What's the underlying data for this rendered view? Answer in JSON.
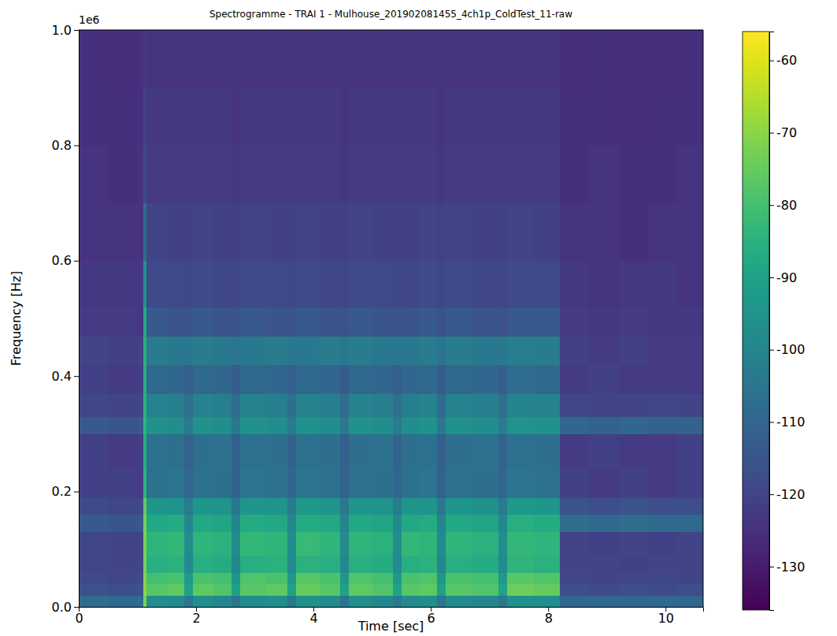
{
  "chart_data": {
    "type": "heatmap",
    "title": "Spectrogramme - TRAI 1 - Mulhouse_201902081455_4ch1p_ColdTest_11-raw",
    "x_label": "Time [sec]",
    "y_label": "Frequency [Hz]",
    "y_offset_text": "1e6",
    "color": "viridis",
    "xlim": [
      0,
      10.64
    ],
    "xticks": [
      0,
      2,
      4,
      6,
      8,
      10
    ],
    "ylim": [
      0,
      1
    ],
    "yticks": [
      {
        "value": 0,
        "label": "0.0"
      },
      {
        "value": 0.2,
        "label": "0.2"
      },
      {
        "value": 0.4,
        "label": "0.4"
      },
      {
        "value": 0.6,
        "label": "0.6"
      },
      {
        "value": 0.8,
        "label": "0.8"
      },
      {
        "value": 1,
        "label": "1.0"
      }
    ],
    "x_edges": [
      0,
      0.5,
      1.0,
      1.1,
      1.15,
      1.5,
      1.8,
      1.95,
      2.3,
      2.6,
      2.75,
      3.2,
      3.55,
      3.7,
      4.1,
      4.45,
      4.6,
      5.0,
      5.35,
      5.5,
      5.8,
      6.1,
      6.25,
      6.7,
      7.15,
      7.3,
      7.75,
      8.2,
      8.7,
      9.2,
      9.7,
      10.2,
      10.64
    ],
    "y_edges": [
      0,
      0.02,
      0.04,
      0.06,
      0.09,
      0.13,
      0.16,
      0.19,
      0.24,
      0.3,
      0.33,
      0.37,
      0.42,
      0.47,
      0.52,
      0.6,
      0.7,
      0.8,
      0.9,
      1.0
    ],
    "cells": [
      [
        -108,
        -109,
        -108,
        -72,
        -97,
        -98,
        -104,
        -97,
        -99,
        -105,
        -98,
        -97,
        -104,
        -96,
        -98,
        -105,
        -97,
        -99,
        -104,
        -98,
        -97,
        -105,
        -98,
        -99,
        -104,
        -96,
        -97,
        -110,
        -109,
        -110,
        -109,
        -110
      ],
      [
        -116,
        -117,
        -116,
        -70,
        -77,
        -76,
        -90,
        -76,
        -78,
        -91,
        -77,
        -76,
        -90,
        -75,
        -77,
        -91,
        -76,
        -78,
        -90,
        -77,
        -76,
        -91,
        -77,
        -78,
        -90,
        -74,
        -75,
        -117,
        -118,
        -117,
        -118,
        -117
      ],
      [
        -118,
        -119,
        -118,
        -71,
        -80,
        -79,
        -93,
        -79,
        -80,
        -94,
        -78,
        -79,
        -93,
        -77,
        -79,
        -94,
        -78,
        -80,
        -93,
        -79,
        -78,
        -94,
        -79,
        -80,
        -93,
        -77,
        -78,
        -119,
        -120,
        -119,
        -119,
        -120
      ],
      [
        -119,
        -120,
        -119,
        -72,
        -86,
        -85,
        -98,
        -86,
        -87,
        -99,
        -86,
        -85,
        -98,
        -85,
        -86,
        -99,
        -86,
        -87,
        -98,
        -86,
        -85,
        -99,
        -86,
        -87,
        -98,
        -84,
        -85,
        -120,
        -120,
        -121,
        -120,
        -120
      ],
      [
        -119,
        -120,
        -120,
        -72,
        -84,
        -83,
        -97,
        -84,
        -85,
        -98,
        -83,
        -84,
        -97,
        -82,
        -84,
        -98,
        -84,
        -85,
        -97,
        -83,
        -84,
        -98,
        -84,
        -85,
        -97,
        -83,
        -84,
        -120,
        -121,
        -120,
        -121,
        -120
      ],
      [
        -114,
        -115,
        -114,
        -73,
        -88,
        -87,
        -99,
        -88,
        -89,
        -100,
        -87,
        -88,
        -99,
        -87,
        -88,
        -100,
        -88,
        -89,
        -99,
        -88,
        -87,
        -100,
        -88,
        -89,
        -99,
        -86,
        -87,
        -108,
        -109,
        -108,
        -109,
        -109
      ],
      [
        -118,
        -119,
        -118,
        -75,
        -94,
        -95,
        -103,
        -94,
        -95,
        -104,
        -94,
        -95,
        -103,
        -93,
        -95,
        -104,
        -94,
        -95,
        -103,
        -94,
        -95,
        -104,
        -94,
        -96,
        -103,
        -93,
        -94,
        -116,
        -117,
        -116,
        -117,
        -117
      ],
      [
        -121,
        -121,
        -122,
        -84,
        -106,
        -105,
        -110,
        -106,
        -107,
        -111,
        -105,
        -106,
        -110,
        -105,
        -106,
        -111,
        -106,
        -107,
        -110,
        -106,
        -105,
        -111,
        -106,
        -107,
        -110,
        -105,
        -106,
        -121,
        -122,
        -121,
        -122,
        -121
      ],
      [
        -121,
        -122,
        -121,
        -86,
        -106,
        -107,
        -111,
        -107,
        -106,
        -112,
        -106,
        -107,
        -111,
        -106,
        -107,
        -112,
        -107,
        -106,
        -111,
        -107,
        -106,
        -112,
        -107,
        -106,
        -111,
        -106,
        -107,
        -122,
        -121,
        -122,
        -122,
        -121
      ],
      [
        -114,
        -115,
        -114,
        -84,
        -96,
        -97,
        -103,
        -96,
        -97,
        -104,
        -96,
        -97,
        -103,
        -96,
        -97,
        -104,
        -96,
        -97,
        -103,
        -97,
        -96,
        -104,
        -96,
        -97,
        -103,
        -95,
        -96,
        -110,
        -111,
        -110,
        -111,
        -111
      ],
      [
        -119,
        -120,
        -119,
        -85,
        -101,
        -102,
        -107,
        -101,
        -102,
        -108,
        -101,
        -102,
        -107,
        -101,
        -102,
        -108,
        -101,
        -102,
        -107,
        -102,
        -101,
        -108,
        -101,
        -102,
        -107,
        -100,
        -101,
        -119,
        -120,
        -120,
        -119,
        -120
      ],
      [
        -121,
        -122,
        -121,
        -86,
        -109,
        -110,
        -112,
        -109,
        -110,
        -113,
        -109,
        -110,
        -112,
        -109,
        -110,
        -113,
        -109,
        -110,
        -112,
        -110,
        -109,
        -113,
        -109,
        -110,
        -112,
        -108,
        -109,
        -122,
        -121,
        -122,
        -122,
        -122
      ],
      [
        -120,
        -121,
        -120,
        -86,
        -103,
        -104,
        -104,
        -103,
        -104,
        -105,
        -104,
        -103,
        -104,
        -104,
        -103,
        -104,
        -103,
        -104,
        -104,
        -104,
        -103,
        -105,
        -103,
        -104,
        -104,
        -102,
        -103,
        -121,
        -122,
        -121,
        -122,
        -122
      ],
      [
        -122,
        -122,
        -123,
        -88,
        -114,
        -115,
        -116,
        -114,
        -115,
        -116,
        -114,
        -115,
        -116,
        -114,
        -115,
        -116,
        -114,
        -115,
        -116,
        -115,
        -114,
        -116,
        -114,
        -115,
        -116,
        -114,
        -114,
        -122,
        -123,
        -122,
        -123,
        -123
      ],
      [
        -123,
        -123,
        -123,
        -95,
        -118,
        -118,
        -119,
        -118,
        -119,
        -119,
        -118,
        -118,
        -119,
        -118,
        -119,
        -119,
        -118,
        -118,
        -119,
        -119,
        -118,
        -119,
        -118,
        -119,
        -119,
        -118,
        -118,
        -123,
        -124,
        -123,
        -123,
        -124
      ],
      [
        -124,
        -124,
        -124,
        -108,
        -120,
        -121,
        -121,
        -120,
        -121,
        -121,
        -120,
        -121,
        -121,
        -120,
        -121,
        -121,
        -120,
        -121,
        -121,
        -121,
        -120,
        -121,
        -120,
        -121,
        -121,
        -120,
        -121,
        -124,
        -124,
        -125,
        -124,
        -124
      ],
      [
        -124,
        -125,
        -124,
        -118,
        -122,
        -122,
        -122,
        -122,
        -122,
        -123,
        -122,
        -122,
        -122,
        -122,
        -122,
        -123,
        -122,
        -122,
        -122,
        -122,
        -122,
        -123,
        -122,
        -122,
        -122,
        -122,
        -122,
        -125,
        -124,
        -125,
        -125,
        -124
      ],
      [
        -125,
        -125,
        -125,
        -121,
        -123,
        -123,
        -123,
        -123,
        -123,
        -124,
        -123,
        -123,
        -123,
        -123,
        -123,
        -124,
        -123,
        -123,
        -123,
        -123,
        -123,
        -124,
        -123,
        -123,
        -123,
        -123,
        -123,
        -125,
        -125,
        -126,
        -125,
        -125
      ],
      [
        -125,
        -126,
        -125,
        -123,
        -124,
        -124,
        -124,
        -124,
        -124,
        -124,
        -124,
        -124,
        -124,
        -124,
        -124,
        -124,
        -124,
        -124,
        -124,
        -124,
        -124,
        -124,
        -124,
        -124,
        -124,
        -124,
        -124,
        -126,
        -125,
        -126,
        -126,
        -125
      ]
    ],
    "colorbar": {
      "range": [
        -136,
        -56
      ],
      "ticks": [
        -60,
        -70,
        -80,
        -90,
        -100,
        -110,
        -120,
        -130
      ]
    }
  }
}
